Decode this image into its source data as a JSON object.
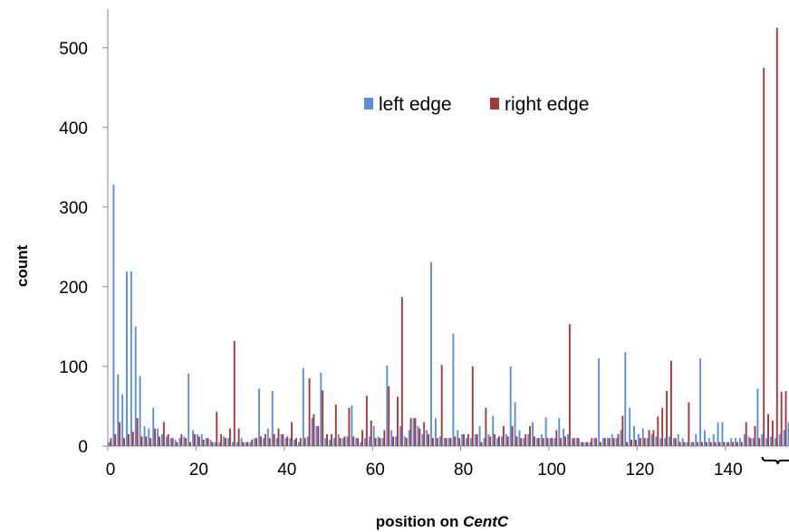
{
  "chart_data": {
    "type": "bar",
    "xlabel_prefix": "position on ",
    "xlabel_italic": "CentC",
    "ylabel": "count",
    "xlim": [
      0,
      156
    ],
    "ylim": [
      0,
      500
    ],
    "x_ticks": [
      0,
      20,
      40,
      60,
      80,
      100,
      120,
      140
    ],
    "y_ticks": [
      0,
      100,
      200,
      300,
      400,
      500
    ],
    "legend_position": "top-center",
    "grid": false,
    "bracket_range": [
      149,
      156
    ],
    "series": [
      {
        "name": "left edge",
        "color": "#5b8fd6",
        "values": [
          5,
          328,
          90,
          65,
          219,
          219,
          150,
          88,
          25,
          22,
          48,
          22,
          15,
          12,
          10,
          8,
          10,
          12,
          91,
          20,
          15,
          15,
          10,
          8,
          5,
          5,
          12,
          10,
          5,
          5,
          10,
          5,
          5,
          10,
          72,
          10,
          22,
          69,
          10,
          15,
          10,
          10,
          8,
          5,
          98,
          12,
          35,
          25,
          92,
          10,
          8,
          10,
          15,
          10,
          12,
          51,
          10,
          5,
          10,
          12,
          25,
          12,
          10,
          101,
          20,
          12,
          25,
          12,
          20,
          35,
          25,
          15,
          20,
          231,
          35,
          12,
          10,
          10,
          141,
          20,
          15,
          10,
          10,
          15,
          25,
          10,
          15,
          38,
          10,
          12,
          15,
          100,
          55,
          20,
          10,
          15,
          30,
          10,
          15,
          36,
          10,
          10,
          35,
          22,
          15,
          10,
          10,
          5,
          5,
          5,
          10,
          110,
          10,
          10,
          15,
          10,
          20,
          118,
          48,
          25,
          15,
          22,
          10,
          15,
          12,
          10,
          10,
          12,
          10,
          15,
          10,
          5,
          5,
          15,
          110,
          20,
          10,
          15,
          30,
          30,
          5,
          10,
          10,
          10,
          15,
          12,
          10,
          72,
          15,
          10,
          12,
          10,
          15,
          20,
          30,
          10
        ]
      },
      {
        "name": "right edge",
        "color": "#a33a3a",
        "values": [
          10,
          15,
          30,
          10,
          15,
          18,
          35,
          12,
          12,
          10,
          22,
          12,
          30,
          15,
          10,
          5,
          15,
          10,
          5,
          15,
          12,
          8,
          10,
          5,
          43,
          15,
          10,
          22,
          132,
          22,
          5,
          5,
          8,
          10,
          12,
          15,
          10,
          15,
          22,
          15,
          12,
          30,
          10,
          10,
          10,
          85,
          40,
          25,
          70,
          15,
          15,
          52,
          10,
          12,
          48,
          12,
          10,
          20,
          63,
          32,
          10,
          10,
          20,
          75,
          12,
          62,
          187,
          10,
          35,
          35,
          22,
          30,
          15,
          10,
          10,
          102,
          10,
          10,
          12,
          10,
          15,
          15,
          100,
          15,
          5,
          48,
          12,
          15,
          12,
          25,
          12,
          25,
          12,
          10,
          15,
          25,
          12,
          10,
          10,
          10,
          10,
          20,
          10,
          12,
          153,
          10,
          10,
          5,
          5,
          10,
          10,
          5,
          10,
          10,
          10,
          15,
          38,
          5,
          8,
          8,
          10,
          10,
          20,
          20,
          37,
          48,
          69,
          107,
          10,
          5,
          5,
          55,
          5,
          5,
          5,
          5,
          5,
          5,
          5,
          5,
          5,
          5,
          5,
          5,
          30,
          10,
          25,
          10,
          475,
          40,
          32,
          525,
          68,
          69,
          60,
          5
        ]
      }
    ]
  }
}
